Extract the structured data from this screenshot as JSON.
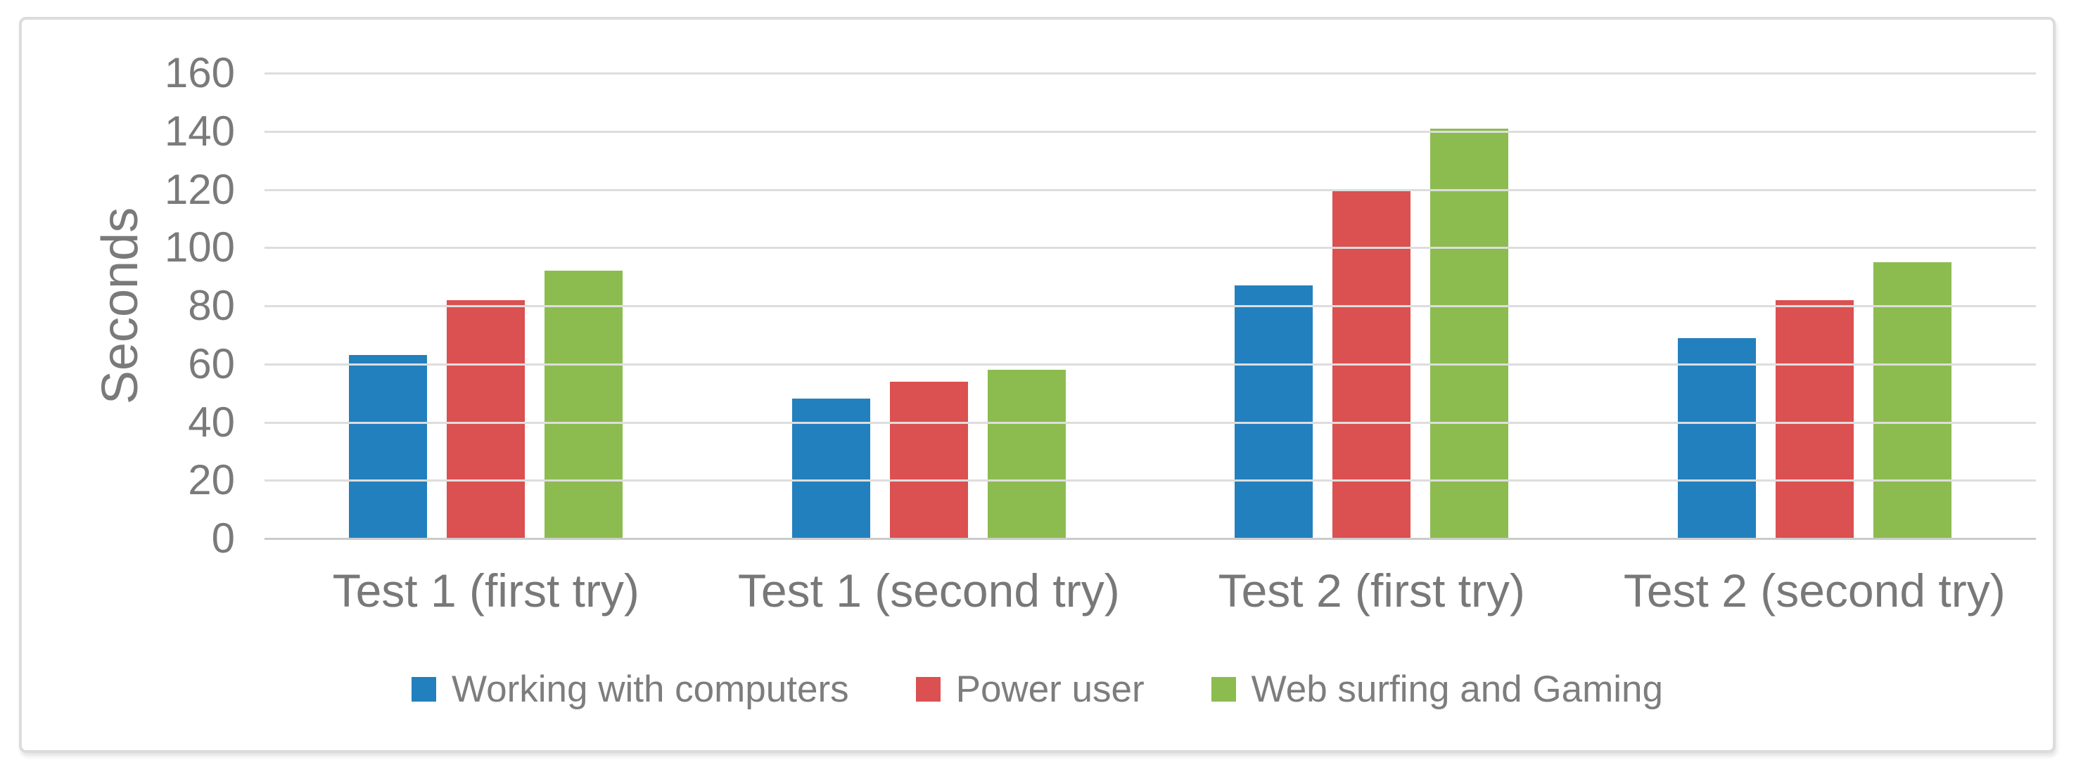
{
  "chart_data": {
    "type": "bar",
    "title": "",
    "xlabel": "",
    "ylabel": "Seconds",
    "categories": [
      "Test 1 (first try)",
      "Test 1 (second try)",
      "Test 2 (first try)",
      "Test 2 (second try)"
    ],
    "series": [
      {
        "name": "Working with computers",
        "color": "#2380BE",
        "values": [
          63,
          48,
          87,
          69
        ]
      },
      {
        "name": "Power user",
        "color": "#DB5050",
        "values": [
          82,
          54,
          120,
          82
        ]
      },
      {
        "name": "Web surfing and Gaming",
        "color": "#8CBC50",
        "values": [
          92,
          58,
          141,
          95
        ]
      }
    ],
    "ylim": [
      0,
      160
    ],
    "ytick_step": 20,
    "yticks": [
      160,
      140,
      120,
      100,
      80,
      60,
      40,
      20,
      0
    ],
    "grid": true,
    "legend_position": "bottom"
  }
}
